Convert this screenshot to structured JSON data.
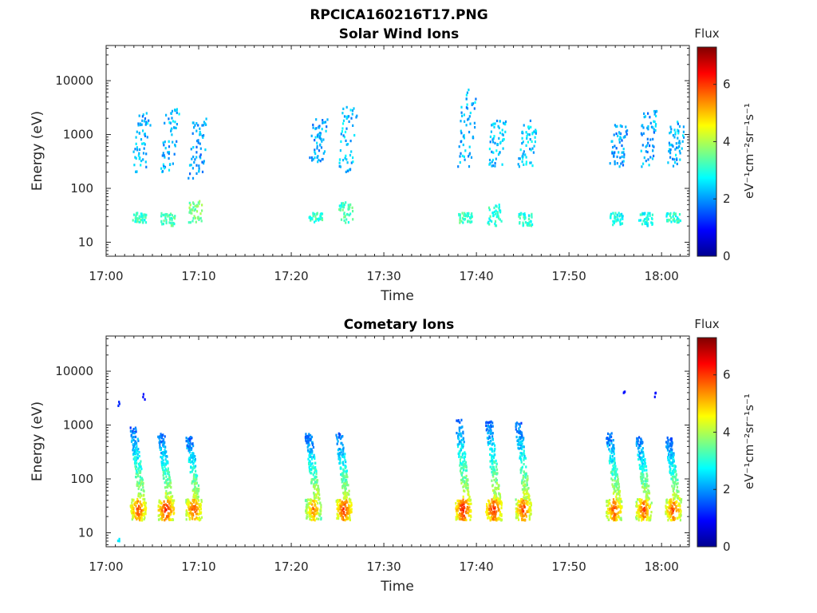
{
  "figure": {
    "title": "RPCICA160216T17.PNG"
  },
  "chart_data": [
    {
      "type": "heatmap",
      "title": "Solar Wind Ions",
      "xlabel": "Time",
      "ylabel": "Energy (eV)",
      "xlim": [
        "17:00",
        "18:03"
      ],
      "x_ticks": [
        "17:00",
        "17:10",
        "17:20",
        "17:30",
        "17:40",
        "17:50",
        "18:00"
      ],
      "ylim": [
        5.5,
        45000
      ],
      "yscale": "log",
      "y_ticks": [
        "10",
        "100",
        "1000",
        "10000"
      ],
      "colorbar": {
        "title": "Flux",
        "label": "eV⁻¹cm⁻²sr⁻¹s⁻¹",
        "range": [
          0,
          7.3
        ],
        "ticks": [
          "0",
          "2",
          "4",
          "6"
        ],
        "colormap": "jet"
      },
      "bursts": [
        {
          "t": "17:03.5",
          "high_e": [
            200,
            2500
          ],
          "high_flux": 2.2,
          "low_e": [
            23,
            35
          ],
          "low_flux": 3.1
        },
        {
          "t": "17:06.6",
          "high_e": [
            200,
            3000
          ],
          "high_flux": 2.2,
          "low_e": [
            20,
            35
          ],
          "low_flux": 3.3
        },
        {
          "t": "17:09.6",
          "high_e": [
            150,
            2000
          ],
          "high_flux": 2.0,
          "low_e": [
            23,
            60
          ],
          "low_flux": 3.6
        },
        {
          "t": "17:22.6",
          "high_e": [
            300,
            2000
          ],
          "high_flux": 2.1,
          "low_e": [
            23,
            35
          ],
          "low_flux": 3.1
        },
        {
          "t": "17:25.8",
          "high_e": [
            200,
            3500
          ],
          "high_flux": 2.3,
          "low_e": [
            23,
            55
          ],
          "low_flux": 3.2
        },
        {
          "t": "17:38.7",
          "high_e": [
            250,
            7000
          ],
          "high_flux": 2.2,
          "low_e": [
            23,
            35
          ],
          "low_flux": 3.2
        },
        {
          "t": "17:41.9",
          "high_e": [
            250,
            2000
          ],
          "high_flux": 2.3,
          "low_e": [
            20,
            50
          ],
          "low_flux": 3.0
        },
        {
          "t": "17:45.2",
          "high_e": [
            250,
            1800
          ],
          "high_flux": 2.4,
          "low_e": [
            20,
            35
          ],
          "low_flux": 3.0
        },
        {
          "t": "17:55.0",
          "high_e": [
            250,
            1500
          ],
          "high_flux": 2.0,
          "low_e": [
            20,
            35
          ],
          "low_flux": 2.9
        },
        {
          "t": "17:58.2",
          "high_e": [
            250,
            3000
          ],
          "high_flux": 2.1,
          "low_e": [
            20,
            35
          ],
          "low_flux": 2.9
        },
        {
          "t": "18:01.2",
          "high_e": [
            250,
            1800
          ],
          "high_flux": 2.2,
          "low_e": [
            23,
            35
          ],
          "low_flux": 3.0
        }
      ]
    },
    {
      "type": "heatmap",
      "title": "Cometary Ions",
      "xlabel": "Time",
      "ylabel": "Energy (eV)",
      "xlim": [
        "17:00",
        "18:03"
      ],
      "x_ticks": [
        "17:00",
        "17:10",
        "17:20",
        "17:30",
        "17:40",
        "17:50",
        "18:00"
      ],
      "ylim": [
        5.5,
        45000
      ],
      "yscale": "log",
      "y_ticks": [
        "10",
        "100",
        "1000",
        "10000"
      ],
      "colorbar": {
        "title": "Flux",
        "label": "eV⁻¹cm⁻²sr⁻¹s⁻¹",
        "range": [
          0,
          7.3
        ],
        "ticks": [
          "0",
          "2",
          "4",
          "6"
        ],
        "colormap": "jet"
      },
      "bursts": [
        {
          "t": "17:03.4",
          "e_top": 900,
          "core_flux": 6.0
        },
        {
          "t": "17:06.4",
          "e_top": 700,
          "core_flux": 6.3
        },
        {
          "t": "17:09.4",
          "e_top": 600,
          "core_flux": 6.0
        },
        {
          "t": "17:22.3",
          "e_top": 700,
          "core_flux": 5.6
        },
        {
          "t": "17:25.6",
          "e_top": 700,
          "core_flux": 6.2
        },
        {
          "t": "17:38.5",
          "e_top": 1300,
          "core_flux": 6.4
        },
        {
          "t": "17:41.8",
          "e_top": 1200,
          "core_flux": 6.3
        },
        {
          "t": "17:45.0",
          "e_top": 1100,
          "core_flux": 6.1
        },
        {
          "t": "17:54.8",
          "e_top": 700,
          "core_flux": 6.0
        },
        {
          "t": "17:58.0",
          "e_top": 600,
          "core_flux": 6.0
        },
        {
          "t": "18:01.2",
          "e_top": 600,
          "core_flux": 6.0
        }
      ],
      "isolated_points": [
        {
          "t": "17:01.3",
          "e": 2400,
          "flux": 1.2
        },
        {
          "t": "17:04.0",
          "e": 3500,
          "flux": 1.0
        },
        {
          "t": "17:01.3",
          "e": 8,
          "flux": 2.6
        },
        {
          "t": "17:55.9",
          "e": 3700,
          "flux": 1.0
        },
        {
          "t": "17:59.2",
          "e": 3700,
          "flux": 1.0
        }
      ]
    }
  ]
}
